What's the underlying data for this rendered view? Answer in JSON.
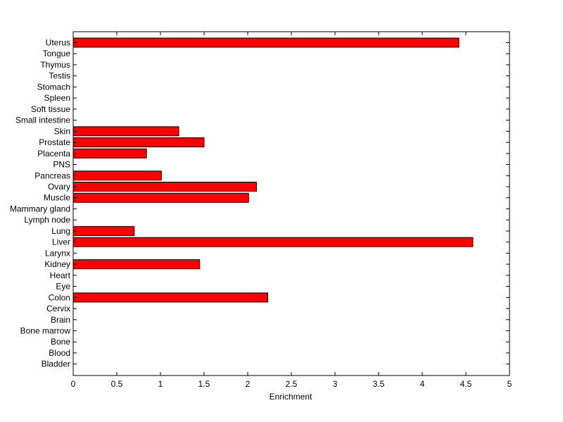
{
  "chart_data": {
    "type": "bar",
    "orientation": "horizontal",
    "title": "",
    "xlabel": "Enrichment",
    "ylabel": "",
    "xlim": [
      0,
      5
    ],
    "xticks": [
      "0",
      "0.5",
      "1",
      "1.5",
      "2",
      "2.5",
      "3",
      "3.5",
      "4",
      "4.5",
      "5"
    ],
    "grid": false,
    "bar_color": "#ff0000",
    "bar_edge_color": "#000000",
    "categories": [
      "Uterus",
      "Tongue",
      "Thymus",
      "Testis",
      "Stomach",
      "Spleen",
      "Soft tissue",
      "Small intestine",
      "Skin",
      "Prostate",
      "Placenta",
      "PNS",
      "Pancreas",
      "Ovary",
      "Muscle",
      "Mammary gland",
      "Lymph node",
      "Lung",
      "Liver",
      "Larynx",
      "Kidney",
      "Heart",
      "Eye",
      "Colon",
      "Cervix",
      "Brain",
      "Bone marrow",
      "Bone",
      "Blood",
      "Bladder"
    ],
    "values": [
      4.42,
      0,
      0,
      0,
      0,
      0,
      0,
      0,
      1.21,
      1.5,
      0.84,
      0,
      1.01,
      2.1,
      2.01,
      0,
      0,
      0.7,
      4.58,
      0,
      1.45,
      0,
      0,
      2.23,
      0,
      0,
      0,
      0,
      0,
      0
    ]
  }
}
